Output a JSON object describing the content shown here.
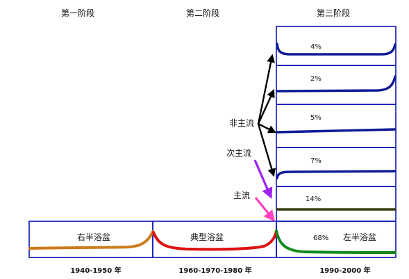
{
  "stages": [
    "第一阶段",
    "第二阶段",
    "第三阶段"
  ],
  "bottom_labels": [
    "右半浴盆",
    "典型浴盆",
    "左半浴盆"
  ],
  "stage3_percents": [
    "4%",
    "2%",
    "5%",
    "7%",
    "14%",
    "68%"
  ],
  "stream_labels": {
    "non_main": "非主流",
    "sub_main": "次主流",
    "main": "主流"
  },
  "years": [
    "1940-1950 年",
    "1960-1970-1980 年",
    "1990-2000 年"
  ],
  "colors": {
    "box": "#0a14b4",
    "right_half": "#cc7a1a",
    "typical": "#e01010",
    "left_half": "#118a1a",
    "dark_blue": "#0f1a96",
    "olive": "#3a3a10",
    "arrow_black": "#000000",
    "arrow_purple": "#a020f0",
    "arrow_pink": "#ff40c0"
  }
}
